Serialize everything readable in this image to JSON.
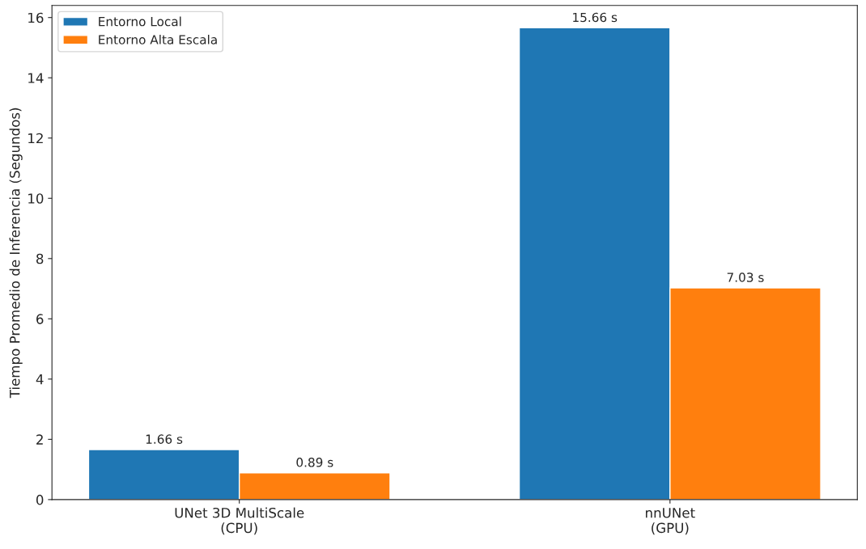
{
  "chart_data": {
    "type": "bar",
    "ylabel": "Tiempo Promedio de Inferencia (Segundos)",
    "categories": [
      "UNet 3D MultiScale\n(CPU)",
      "nnUNet\n(GPU)"
    ],
    "series": [
      {
        "name": "Entorno Local",
        "color": "#1f77b4",
        "values": [
          1.66,
          15.66
        ],
        "value_labels": [
          "1.66 s",
          "15.66 s"
        ]
      },
      {
        "name": "Entorno Alta Escala",
        "color": "#ff7f0e",
        "values": [
          0.89,
          7.03
        ],
        "value_labels": [
          "0.89 s",
          "7.03 s"
        ]
      }
    ],
    "ylim": [
      0,
      16.4
    ],
    "yticks": [
      0,
      2,
      4,
      6,
      8,
      10,
      12,
      14,
      16
    ],
    "legend": "top left",
    "grid": false
  }
}
